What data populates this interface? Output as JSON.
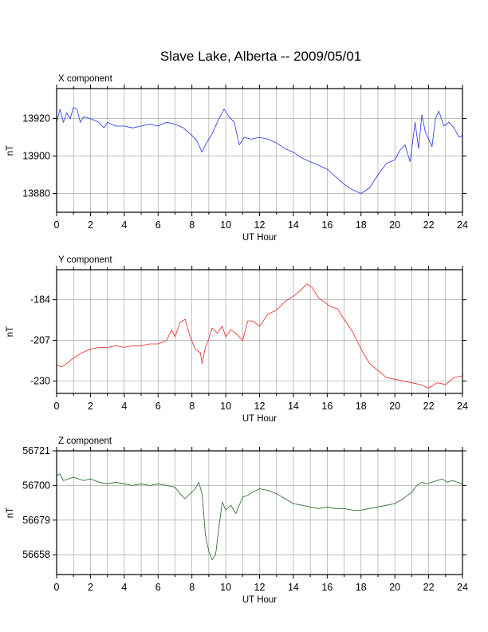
{
  "title": "Slave Lake, Alberta -- 2009/05/01",
  "chart_data": [
    {
      "type": "line",
      "panel_label": "X component",
      "xlabel": "UT Hour",
      "ylabel": "nT",
      "xlim": [
        0,
        24
      ],
      "ylim": [
        13870,
        13936
      ],
      "xticks": [
        0,
        2,
        4,
        6,
        8,
        10,
        12,
        14,
        16,
        18,
        20,
        22,
        24
      ],
      "yticks": [
        13880,
        13900,
        13920
      ],
      "grid": true,
      "color": "#2233ee",
      "x": [
        0,
        0.2,
        0.4,
        0.6,
        0.8,
        1.0,
        1.2,
        1.4,
        1.6,
        2.0,
        2.5,
        2.8,
        3.0,
        3.5,
        4.0,
        4.5,
        5.0,
        5.5,
        6.0,
        6.5,
        7.0,
        7.5,
        8.0,
        8.3,
        8.6,
        8.8,
        9.2,
        9.6,
        9.9,
        10.2,
        10.5,
        10.8,
        11.1,
        11.5,
        12.0,
        12.5,
        13.0,
        13.5,
        14.0,
        14.5,
        15.0,
        15.5,
        16.0,
        16.5,
        17.0,
        17.5,
        18.0,
        18.5,
        19.0,
        19.5,
        20.0,
        20.3,
        20.6,
        20.9,
        21.2,
        21.4,
        21.6,
        21.8,
        22.0,
        22.2,
        22.4,
        22.6,
        22.9,
        23.2,
        23.5,
        23.8,
        24.0
      ],
      "y": [
        13918,
        13925,
        13918,
        13923,
        13920,
        13926,
        13925,
        13918,
        13921,
        13920,
        13918,
        13915,
        13918,
        13916,
        13916,
        13915,
        13916,
        13917,
        13916,
        13918,
        13917,
        13915,
        13911,
        13908,
        13902,
        13906,
        13912,
        13920,
        13925,
        13921,
        13918,
        13906,
        13910,
        13909,
        13910,
        13909,
        13907,
        13904,
        13902,
        13899,
        13897,
        13895,
        13893,
        13889,
        13885,
        13882,
        13880,
        13883,
        13890,
        13896,
        13898,
        13903,
        13906,
        13897,
        13918,
        13904,
        13922,
        13913,
        13909,
        13905,
        13920,
        13924,
        13916,
        13918,
        13915,
        13910,
        13911
      ]
    },
    {
      "type": "line",
      "panel_label": "Y component",
      "xlabel": "UT Hour",
      "ylabel": "nT",
      "xlim": [
        0,
        24
      ],
      "ylim": [
        -237,
        -167
      ],
      "xticks": [
        0,
        2,
        4,
        6,
        8,
        10,
        12,
        14,
        16,
        18,
        20,
        22,
        24
      ],
      "yticks": [
        -184,
        -207,
        -230
      ],
      "grid": true,
      "color": "#ee2222",
      "x": [
        0,
        0.3,
        0.6,
        1.0,
        1.5,
        2.0,
        2.5,
        3.0,
        3.5,
        4.0,
        4.5,
        5.0,
        5.5,
        6.0,
        6.5,
        6.8,
        7.0,
        7.3,
        7.6,
        7.9,
        8.2,
        8.5,
        8.6,
        8.8,
        9.0,
        9.2,
        9.5,
        9.8,
        10.0,
        10.3,
        10.6,
        11.0,
        11.3,
        11.6,
        12.0,
        12.5,
        13.0,
        13.5,
        14.0,
        14.5,
        14.8,
        15.1,
        15.5,
        15.8,
        16.2,
        16.6,
        17.0,
        17.5,
        18.0,
        18.5,
        19.0,
        19.5,
        20.0,
        20.5,
        21.0,
        21.5,
        22.0,
        22.5,
        23.0,
        23.5,
        24.0
      ],
      "y": [
        -221,
        -222,
        -220,
        -217,
        -214,
        -212,
        -211,
        -211,
        -210,
        -211,
        -210,
        -210,
        -209,
        -209,
        -207,
        -201,
        -205,
        -197,
        -195,
        -205,
        -212,
        -214,
        -220,
        -211,
        -206,
        -200,
        -203,
        -199,
        -205,
        -201,
        -203,
        -207,
        -196,
        -196,
        -199,
        -192,
        -190,
        -185,
        -182,
        -178,
        -175,
        -177,
        -183,
        -185,
        -188,
        -189,
        -195,
        -202,
        -212,
        -220,
        -224,
        -228,
        -229,
        -230,
        -231,
        -232,
        -234,
        -231,
        -232,
        -228,
        -227
      ]
    },
    {
      "type": "line",
      "panel_label": "Z component",
      "xlabel": "UT Hour",
      "ylabel": "nT",
      "xlim": [
        0,
        24
      ],
      "ylim": [
        56646,
        56721
      ],
      "xticks": [
        0,
        2,
        4,
        6,
        8,
        10,
        12,
        14,
        16,
        18,
        20,
        22,
        24
      ],
      "yticks": [
        56658,
        56679,
        56700,
        56721
      ],
      "grid": true,
      "color": "#226622",
      "x": [
        0,
        0.2,
        0.4,
        0.7,
        1.0,
        1.3,
        1.6,
        2.0,
        2.5,
        3.0,
        3.5,
        4.0,
        4.5,
        5.0,
        5.5,
        6.0,
        6.5,
        7.0,
        7.3,
        7.6,
        7.9,
        8.2,
        8.4,
        8.6,
        8.8,
        9.0,
        9.2,
        9.4,
        9.6,
        9.8,
        10.0,
        10.3,
        10.6,
        11.0,
        11.3,
        11.6,
        12.0,
        12.5,
        13.0,
        13.5,
        14.0,
        14.5,
        15.0,
        15.5,
        16.0,
        16.5,
        17.0,
        17.5,
        18.0,
        18.5,
        19.0,
        19.5,
        20.0,
        20.5,
        21.0,
        21.3,
        21.6,
        21.9,
        22.2,
        22.5,
        22.8,
        23.1,
        23.4,
        23.7,
        24.0
      ],
      "y": [
        56706,
        56707,
        56703,
        56704,
        56705,
        56704,
        56703,
        56704,
        56702,
        56701,
        56702,
        56701,
        56700,
        56701,
        56700,
        56701,
        56700,
        56699,
        56695,
        56692,
        56695,
        56698,
        56702,
        56695,
        56670,
        56660,
        56655,
        56658,
        56675,
        56690,
        56685,
        56688,
        56683,
        56693,
        56694,
        56696,
        56698,
        56697,
        56695,
        56692,
        56689,
        56688,
        56687,
        56686,
        56687,
        56686,
        56686,
        56685,
        56685,
        56686,
        56687,
        56688,
        56689,
        56692,
        56696,
        56700,
        56702,
        56701,
        56702,
        56703,
        56704,
        56702,
        56703,
        56702,
        56701
      ]
    }
  ]
}
